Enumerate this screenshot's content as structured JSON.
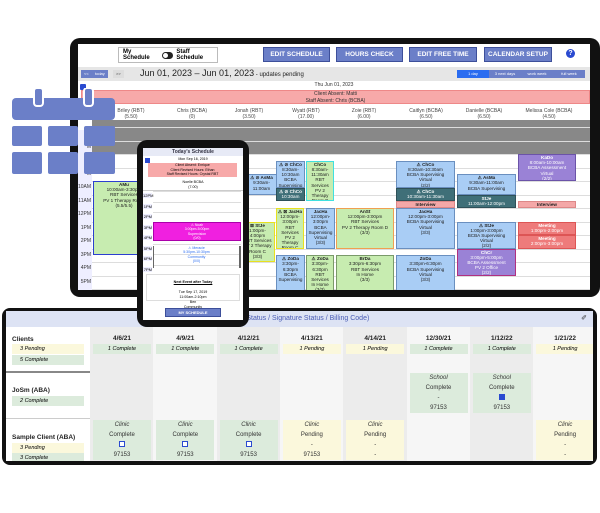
{
  "colors": {
    "accent": "#6b7fc8",
    "absent": "#f7a9a9",
    "complete": "#dcebdc",
    "pending": "#fbf8dc"
  },
  "toolbar": {
    "my_schedule": "My Schedule",
    "staff_schedule": "Staff Schedule",
    "edit_schedule": "EDIT SCHEDULE",
    "hours_check": "HOURS CHECK",
    "edit_free_time": "EDIT FREE TIME",
    "calendar_setup": "CALENDAR SETUP",
    "help": "?"
  },
  "daterow": {
    "prev": "<<",
    "today": "today",
    "next": ">>",
    "range": "Jun 01, 2023 – Jun 01, 2023",
    "status": " - updates pending",
    "views": [
      "1 day",
      "3 next days",
      "work week",
      "full week"
    ]
  },
  "day": {
    "date": "Thu Jun 01, 2023",
    "absences": [
      "Client Absent: Matti",
      "Staff Absent: Chris (BCBA)"
    ]
  },
  "staff": [
    {
      "name": "Briley (RBT)",
      "hours": "(5.50)"
    },
    {
      "name": "Chris (BCBA)",
      "hours": "(0)"
    },
    {
      "name": "Jonah (RBT)",
      "hours": "(3.50)"
    },
    {
      "name": "Wyatt (RBT)",
      "hours": "(17.00)"
    },
    {
      "name": "Zoie (RBT)",
      "hours": "(6.00)"
    },
    {
      "name": "Caitlyn (BCBA)",
      "hours": "(6.50)"
    },
    {
      "name": "Danielle (BCBA)",
      "hours": "(6.50)"
    },
    {
      "name": "Melissa Cole (BCBA)",
      "hours": "(4.50)"
    }
  ],
  "times": [
    "M",
    "M",
    "M",
    "M",
    "10AM",
    "11AM",
    "12PM",
    "1PM",
    "2PM",
    "3PM",
    "4PM",
    "5PM"
  ],
  "events": [
    {
      "title": "AMu",
      "body": "10:00am-3:30pm\nRBT Services\nPV 1 Therapy Room\n(5.5/5.5)",
      "start": 10,
      "end": 15.5,
      "style": "green bb"
    },
    {
      "title": "⚠ ⊘ AsMa",
      "body": "9:30am-\n11:00am",
      "start": 9.5,
      "end": 11,
      "style": "blue"
    },
    {
      "title": "⊠ StJe",
      "body": "1:00pm-\n4:00pm\nRBT Services\nPV 2 Therapy\nRoom C\n(3/3)",
      "start": 13,
      "end": 16,
      "style": "green yb"
    },
    {
      "title": "⚠ ⊘ ChCo",
      "body": "8:30am-\n10:30am\nBCBA\nSupervising",
      "start": 8.5,
      "end": 10.5,
      "style": "blue"
    },
    {
      "title": "⚠ ⊘ ChCo",
      "body": "10:30am",
      "start": 10.5,
      "end": 11.5,
      "style": "dark"
    },
    {
      "title": "ChCo",
      "body": "8:30am-\n11:30am\nRBT Services\nPV 2 Therapy\nRoom B\n(3/3)",
      "start": 8.5,
      "end": 11.5,
      "style": "green cb"
    },
    {
      "title": "⚠ ⊠ JacHa",
      "body": "12:00pm-\n3:00pm\nRBT Services\nPV 2 Therapy\nRoom C\n(3/3)",
      "start": 12,
      "end": 15,
      "style": "green yb"
    },
    {
      "title": "JacHa",
      "body": "12:00pm-\n3:00pm\nBCBA\nSupervising\nVirtual\n(3/3)",
      "start": 12,
      "end": 15,
      "style": "blue"
    },
    {
      "title": "⚠ ZoDa",
      "body": "3:30pm-\n6:30pm\nBCBA\nSupervising",
      "start": 15.5,
      "end": 18.5,
      "style": "blue"
    },
    {
      "title": "⚠ ZoDa",
      "body": "3:30pm-\n6:30pm\nRBT Services\nIn Home\n(3/3)",
      "start": 15.5,
      "end": 18.5,
      "style": "green"
    },
    {
      "title": "AnSt",
      "body": "12:00pm-3:00pm\nRBT Services\nPV 2 Therapy Room D\n(3/3)",
      "start": 12,
      "end": 15,
      "style": "green ob"
    },
    {
      "title": "BrDa",
      "body": "3:30pm-6:30pm\nRBT Services\nIn Home\n(3/3)",
      "start": 15.5,
      "end": 18.5,
      "style": "green"
    },
    {
      "title": "⚠ ChCo",
      "body": "8:30am-10:30am\nBCBA Supervising\nVirtual\n(2/2)",
      "start": 8.5,
      "end": 10.5,
      "style": "blue"
    },
    {
      "title": "⚠ ChCo",
      "body": "10:30am-11:30am",
      "start": 10.5,
      "end": 11.5,
      "style": "dark"
    },
    {
      "title": "Interview",
      "body": "",
      "start": 11.5,
      "end": 12,
      "style": "pink"
    },
    {
      "title": "JacHa",
      "body": "12:00pm-3:00pm\nBCBA Supervising\nVirtual\n(3/3)",
      "start": 12,
      "end": 15,
      "style": "blue"
    },
    {
      "title": "ZoDa",
      "body": "3:30pm-6:30pm\nBCBA Supervising\nVirtual\n(3/3)",
      "start": 15.5,
      "end": 18.5,
      "style": "blue"
    },
    {
      "title": "⚠ AsMa",
      "body": "9:30am-11:00am\nBCBA Supervising",
      "start": 9.5,
      "end": 11,
      "style": "blue"
    },
    {
      "title": "StJe",
      "body": "11:00am-12:00pm",
      "start": 11,
      "end": 12,
      "style": "dark"
    },
    {
      "title": "⚠ StJe",
      "body": "1:00pm-3:00pm\nBCBA Supervising\nVirtual\n(2/2)",
      "start": 13,
      "end": 15,
      "style": "blue"
    },
    {
      "title": "ChCr",
      "body": "3:00pm-5:00pm\nBCBA Assessment\nPV 2 Office\n(2/2)",
      "start": 15,
      "end": 17,
      "style": "purple mb"
    },
    {
      "title": "KaDo",
      "body": "8:00am-10:00am\nBCBA Assessment\nVirtual\n(2/2)",
      "start": 8,
      "end": 10,
      "style": "purple"
    },
    {
      "title": "Interview",
      "body": "",
      "start": 11.5,
      "end": 12,
      "style": "pink"
    },
    {
      "title": "Meeting",
      "body": "1:00pm-2:00pm",
      "start": 13,
      "end": 14,
      "style": "red"
    },
    {
      "title": "Meeting",
      "body": "2:00pm-3:00pm",
      "start": 14,
      "end": 15,
      "style": "red"
    }
  ],
  "phone": {
    "title": "Today's Schedule",
    "date": "Mon Sep 16, 2019",
    "absences": "Client Absent: Enrique\nClient Revised Hours: Ethan\nStaff Revised Hours: Crystal RBT",
    "staff": "Noelle BCBA",
    "staff_hours": "(7.00)",
    "times": [
      "12PM",
      "1PM",
      "2PM",
      "3PM",
      "4PM",
      "5PM",
      "6PM",
      "7PM"
    ],
    "event1": "⚠ Noah\n3:00pm-5:00pm\nSupervision\n(0/0)",
    "event2": "⚠ Meracie\n5:30pm-10:30pm\nCommunity\n(0/0)",
    "next_title": "Next Event after Today",
    "next_body": "Tue Sep 17, 2019\n11:00am-2:10pm\nBen\nCommunity",
    "button": "MY SCHEDULE"
  },
  "panel": {
    "title": "Edit (Status / Signature Status / Billing Code)",
    "clients_label": "Clients",
    "clients_pending": "3 Pending",
    "clients_complete": "5 Complete",
    "dates": [
      "4/6/21",
      "4/9/21",
      "4/12/21",
      "4/13/21",
      "4/14/21",
      "12/30/21",
      "1/12/22",
      "1/21/22"
    ],
    "summary": [
      {
        "text": "1 Complete",
        "status": "c"
      },
      {
        "text": "1 Complete",
        "status": "c"
      },
      {
        "text": "1 Complete",
        "status": "c"
      },
      {
        "text": "1 Pending",
        "status": "p"
      },
      {
        "text": "1 Pending",
        "status": "p"
      },
      {
        "text": "1 Complete",
        "status": "c"
      },
      {
        "text": "1 Complete",
        "status": "c"
      },
      {
        "text": "1 Pending",
        "status": "p"
      }
    ],
    "rows": [
      {
        "name": "JoSm (ABA)",
        "subs": [
          {
            "text": "2 Complete",
            "status": "c"
          }
        ],
        "cells": [
          null,
          null,
          null,
          null,
          null,
          {
            "location": "School",
            "status": "Complete",
            "sig": "-",
            "code": "97153",
            "st": "c"
          },
          {
            "location": "School",
            "status": "Complete",
            "sig": "edit",
            "code": "97153",
            "st": "c"
          },
          null
        ]
      },
      {
        "name": "Sample Client (ABA)",
        "subs": [
          {
            "text": "3 Pending",
            "status": "p"
          },
          {
            "text": "3 Complete",
            "status": "c"
          }
        ],
        "cells": [
          {
            "location": "Clinic",
            "status": "Complete",
            "sig": "edit",
            "code": "97153",
            "st": "c"
          },
          {
            "location": "Clinic",
            "status": "Complete",
            "sig": "edit",
            "code": "97153",
            "st": "c"
          },
          {
            "location": "Clinic",
            "status": "Complete",
            "sig": "edit",
            "code": "97153",
            "st": "c"
          },
          {
            "location": "Clinic",
            "status": "Pending",
            "sig": "-",
            "code": "97153",
            "st": "p"
          },
          {
            "location": "Clinic",
            "status": "Pending",
            "sig": "-",
            "code": "-",
            "st": "p"
          },
          null,
          null,
          {
            "location": "Clinic",
            "status": "Pending",
            "sig": "-",
            "code": "-",
            "st": "p"
          }
        ]
      }
    ]
  }
}
